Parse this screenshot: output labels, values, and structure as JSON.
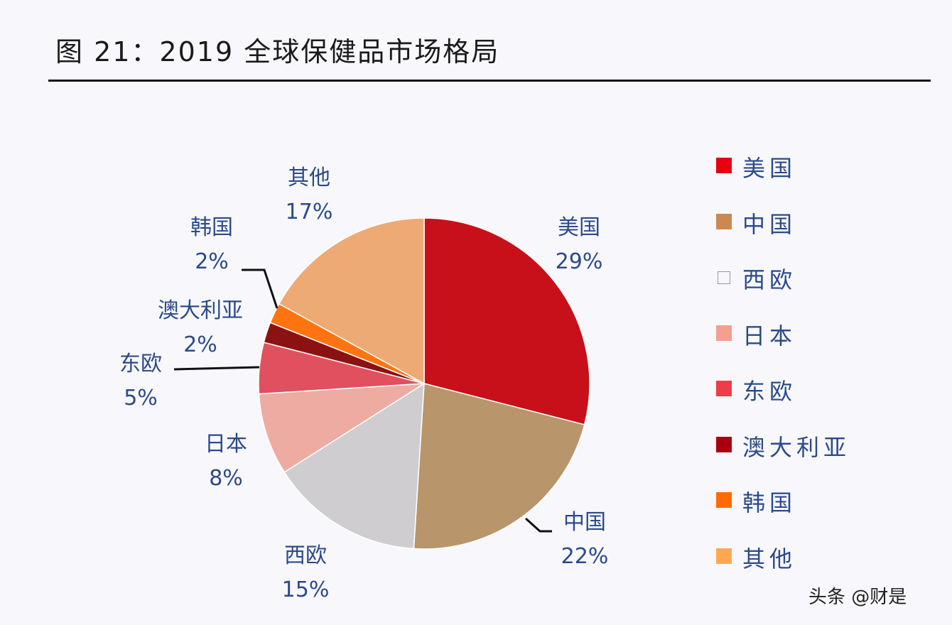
{
  "title": "图 21：2019 全球保健品市场格局",
  "watermark": "头条 @财是",
  "chart_data": {
    "type": "pie",
    "title": "图 21：2019 全球保健品市场格局",
    "categories": [
      "美国",
      "中国",
      "西欧",
      "日本",
      "东欧",
      "澳大利亚",
      "韩国",
      "其他"
    ],
    "values": [
      29,
      22,
      15,
      8,
      5,
      2,
      2,
      17
    ],
    "labels": [
      "29%",
      "22%",
      "15%",
      "8%",
      "5%",
      "2%",
      "2%",
      "17%"
    ],
    "colors": [
      "#c8101a",
      "#b8956a",
      "#cfcdd0",
      "#eeaba2",
      "#e0505e",
      "#8c1212",
      "#ff7410",
      "#eeaa74"
    ],
    "legend_colors": [
      "#e60012",
      "#cc8850",
      "#bbbbbb",
      "#f4a090",
      "#ee3c48",
      "#a80010",
      "#ff6a00",
      "#ffa850"
    ],
    "legend_placement": "right",
    "start": "top",
    "direction": "clockwise"
  }
}
